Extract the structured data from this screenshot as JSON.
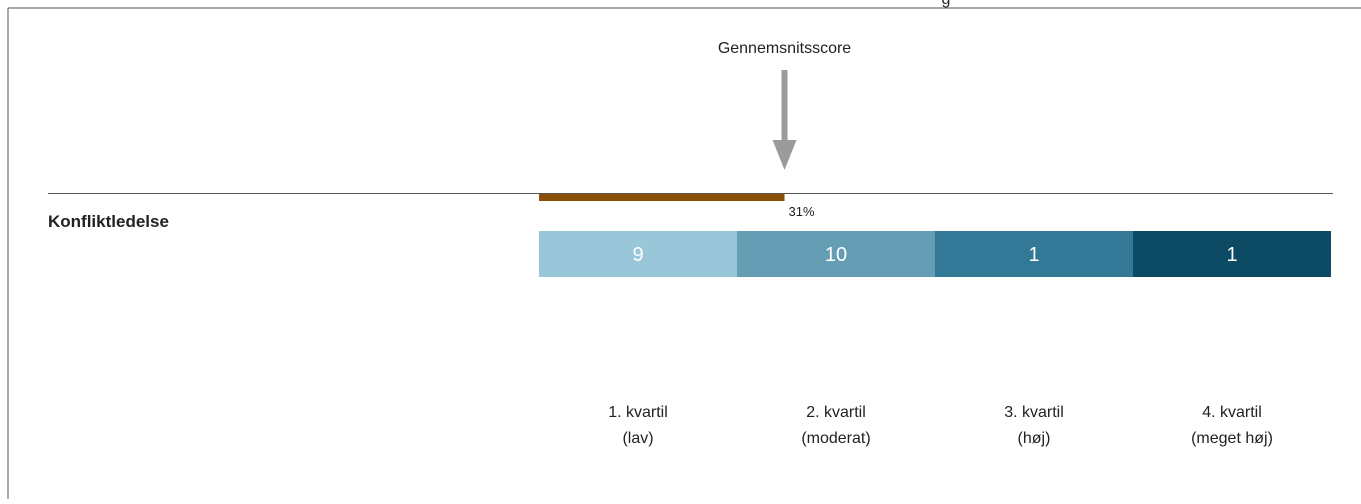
{
  "header_fragment": "g",
  "chart_data": {
    "type": "score-bar",
    "marker_label": "Gennemsnitsscore",
    "row_label": "Konfliktledelse",
    "score": 31,
    "score_label": "31%",
    "xlim": [
      0,
      100
    ],
    "score_color": "#8a4e0b",
    "segments": [
      {
        "count": "9",
        "label_line1": "1. kvartil",
        "label_line2": "(lav)",
        "color": "#9ac6da"
      },
      {
        "count": "10",
        "label_line1": "2. kvartil",
        "label_line2": "(moderat)",
        "color": "#659db5"
      },
      {
        "count": "1",
        "label_line1": "3. kvartil",
        "label_line2": "(høj)",
        "color": "#347897"
      },
      {
        "count": "1",
        "label_line1": "4. kvartil",
        "label_line2": "(meget høj)",
        "color": "#0d4a63"
      }
    ]
  }
}
